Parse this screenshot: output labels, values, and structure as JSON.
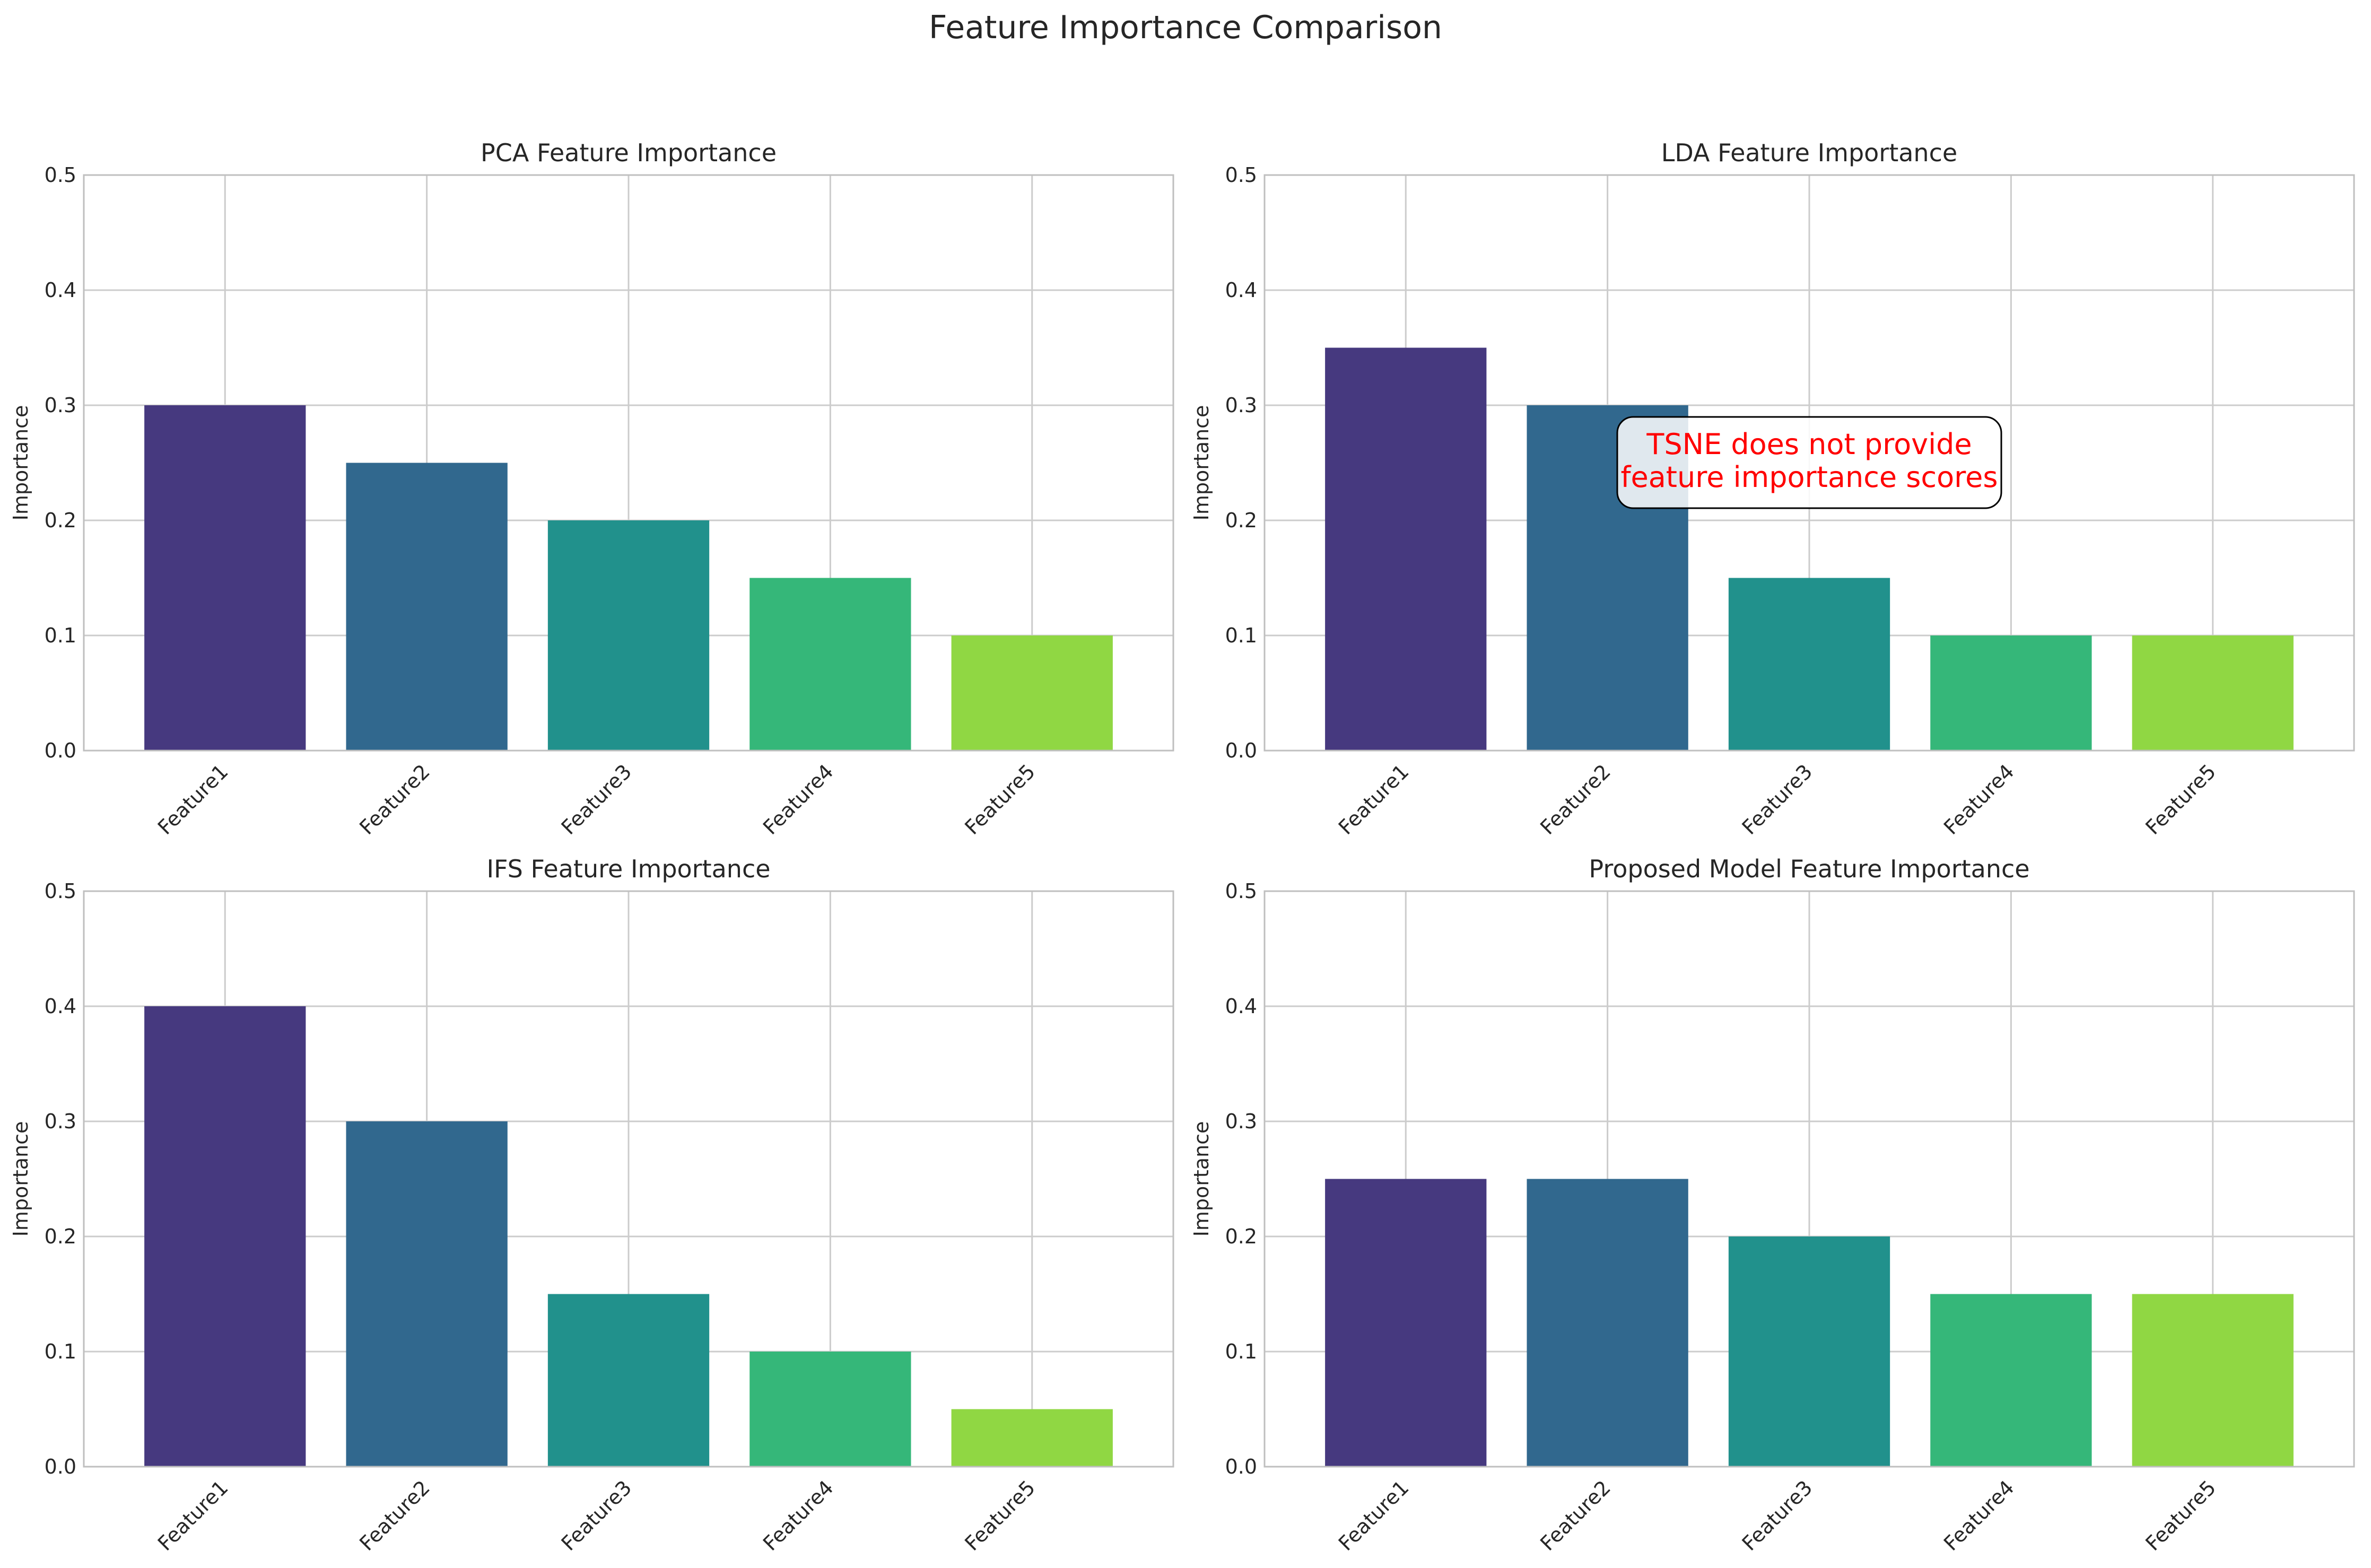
{
  "figure": {
    "title": "Feature Importance Comparison"
  },
  "chart_data": [
    {
      "type": "bar",
      "title": "PCA Feature Importance",
      "xlabel": "",
      "ylabel": "Importance",
      "categories": [
        "Feature1",
        "Feature2",
        "Feature3",
        "Feature4",
        "Feature5"
      ],
      "values": [
        0.3,
        0.25,
        0.2,
        0.15,
        0.1
      ],
      "ylim": [
        0,
        0.5
      ],
      "yticks": [
        "0.0",
        "0.1",
        "0.2",
        "0.3",
        "0.4",
        "0.5"
      ],
      "grid": true,
      "colors": [
        "#46397f",
        "#31688e",
        "#21918c",
        "#35b779",
        "#90d743"
      ]
    },
    {
      "type": "bar",
      "title": "LDA Feature Importance",
      "xlabel": "",
      "ylabel": "Importance",
      "categories": [
        "Feature1",
        "Feature2",
        "Feature3",
        "Feature4",
        "Feature5"
      ],
      "values": [
        0.35,
        0.3,
        0.15,
        0.1,
        0.1
      ],
      "ylim": [
        0,
        0.5
      ],
      "yticks": [
        "0.0",
        "0.1",
        "0.2",
        "0.3",
        "0.4",
        "0.5"
      ],
      "grid": true,
      "colors": [
        "#46397f",
        "#31688e",
        "#21918c",
        "#35b779",
        "#90d743"
      ],
      "annotation": {
        "lines": [
          "TSNE does not provide",
          "feature importance scores"
        ],
        "color": "#ff0000"
      }
    },
    {
      "type": "bar",
      "title": "IFS Feature Importance",
      "xlabel": "",
      "ylabel": "Importance",
      "categories": [
        "Feature1",
        "Feature2",
        "Feature3",
        "Feature4",
        "Feature5"
      ],
      "values": [
        0.4,
        0.3,
        0.15,
        0.1,
        0.05
      ],
      "ylim": [
        0,
        0.5
      ],
      "yticks": [
        "0.0",
        "0.1",
        "0.2",
        "0.3",
        "0.4",
        "0.5"
      ],
      "grid": true,
      "colors": [
        "#46397f",
        "#31688e",
        "#21918c",
        "#35b779",
        "#90d743"
      ]
    },
    {
      "type": "bar",
      "title": "Proposed Model Feature Importance",
      "xlabel": "",
      "ylabel": "Importance",
      "categories": [
        "Feature1",
        "Feature2",
        "Feature3",
        "Feature4",
        "Feature5"
      ],
      "values": [
        0.25,
        0.25,
        0.2,
        0.15,
        0.15
      ],
      "ylim": [
        0,
        0.5
      ],
      "yticks": [
        "0.0",
        "0.1",
        "0.2",
        "0.3",
        "0.4",
        "0.5"
      ],
      "grid": true,
      "colors": [
        "#46397f",
        "#31688e",
        "#21918c",
        "#35b779",
        "#90d743"
      ]
    }
  ]
}
